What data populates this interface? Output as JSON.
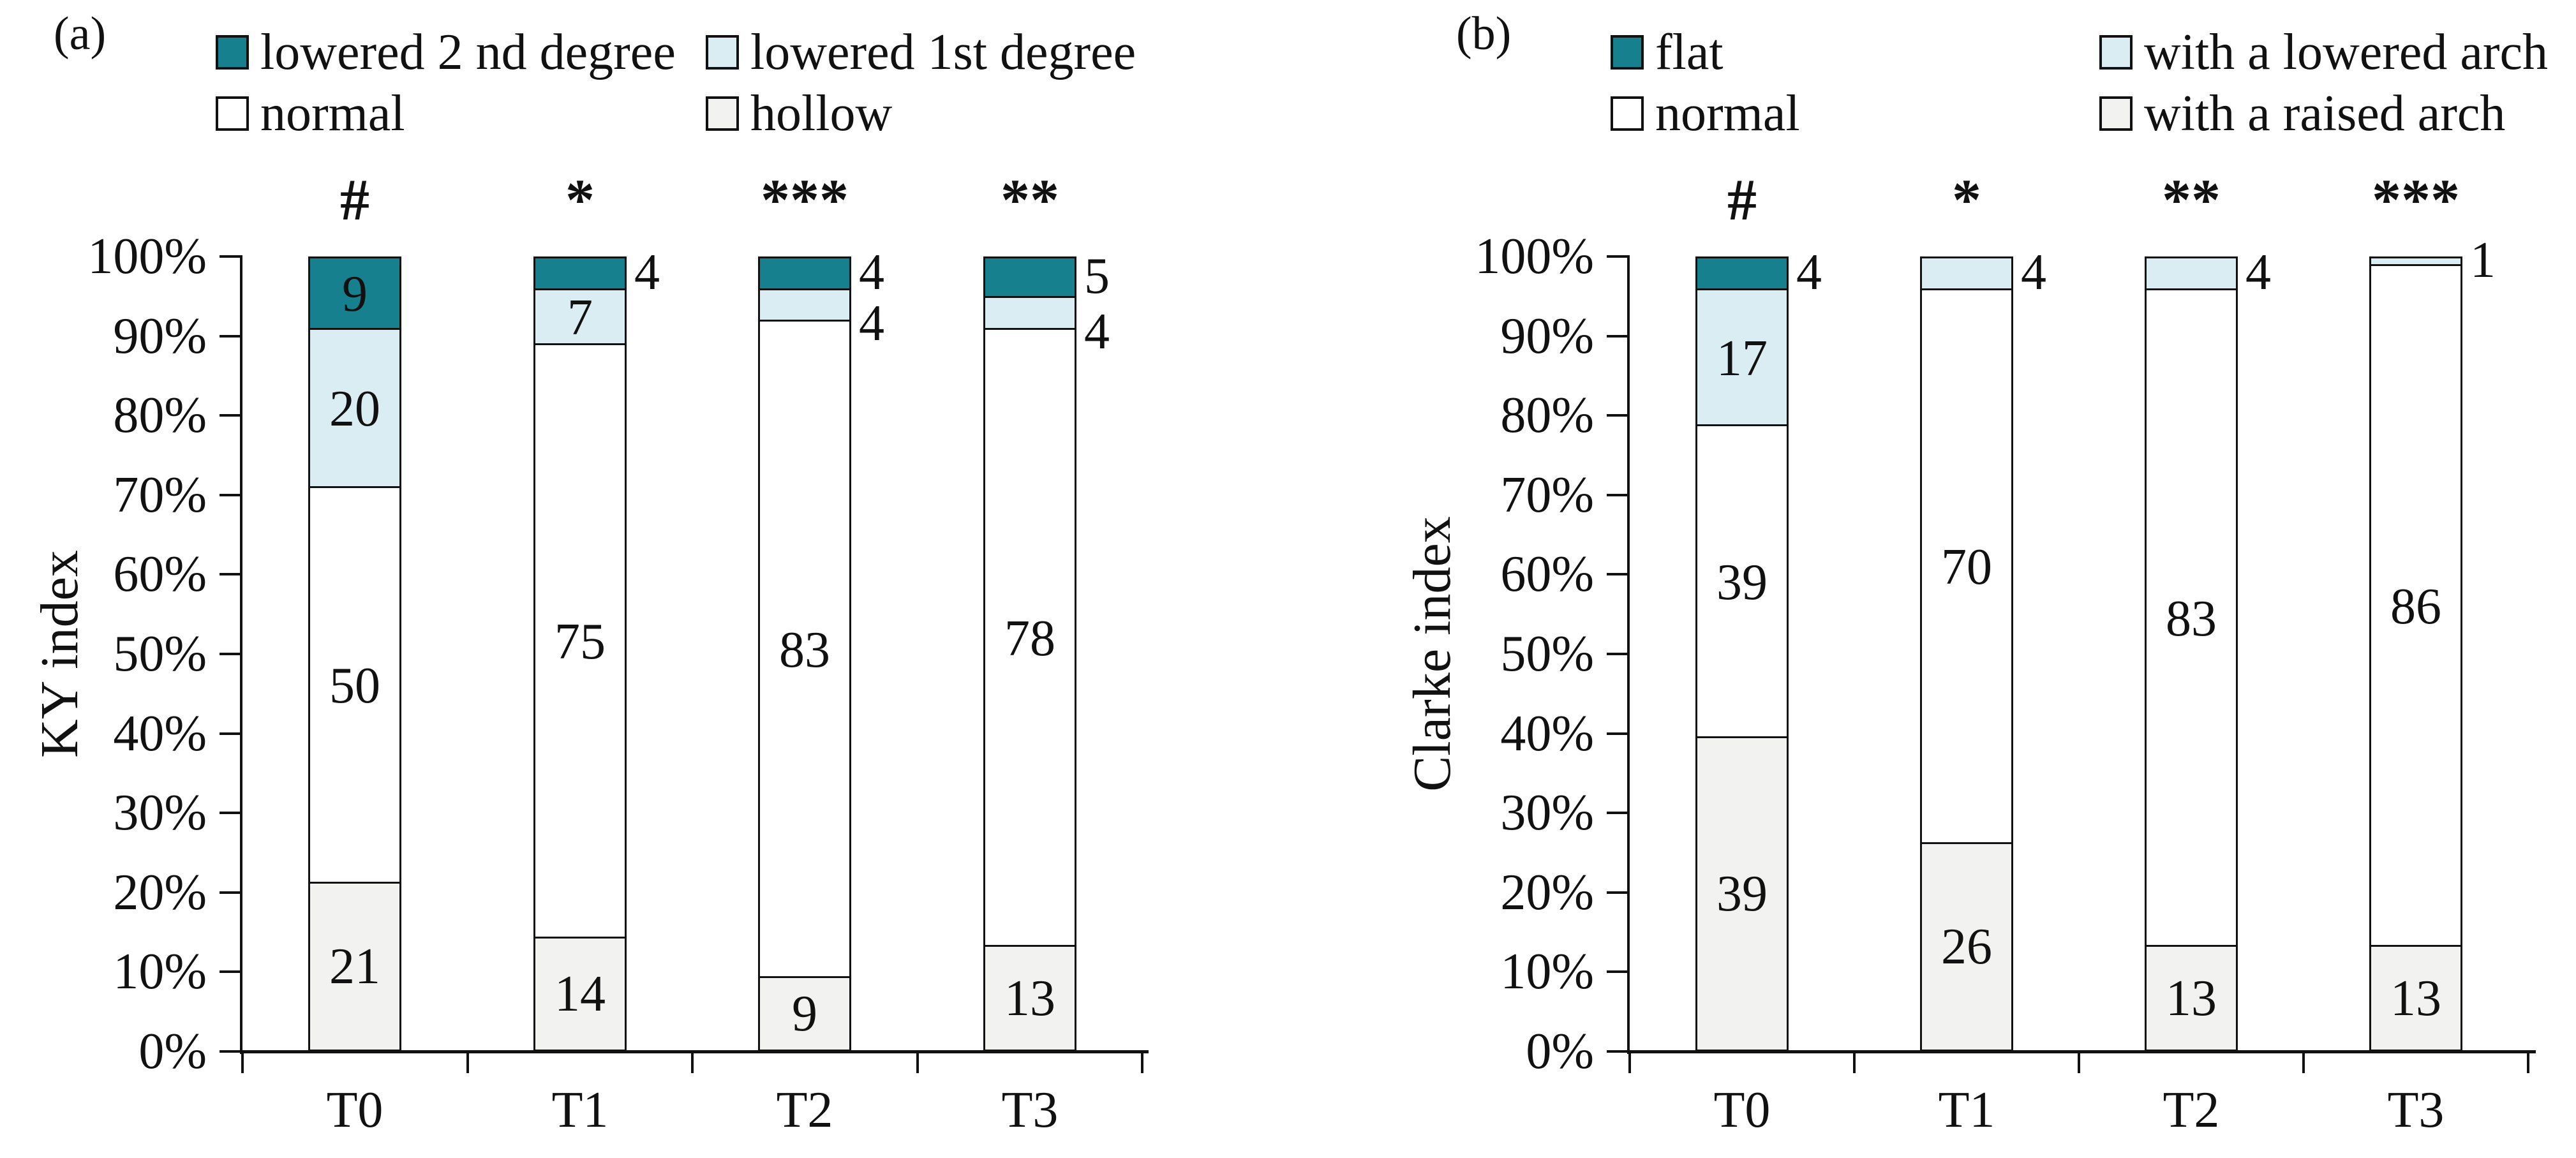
{
  "chart_data": [
    {
      "type": "bar",
      "stacked": true,
      "percent_scale": true,
      "panel_label": "(a)",
      "ylabel": "KY index",
      "xlabel": "",
      "categories": [
        "T0",
        "T1",
        "T2",
        "T3"
      ],
      "significance_markers": [
        "#",
        "*",
        "***",
        "**"
      ],
      "series_order": "bottom-to-top",
      "series": [
        {
          "name": "hollow",
          "color": "#F2F2F1",
          "values": [
            21,
            14,
            9,
            13
          ]
        },
        {
          "name": "normal",
          "color": "#FFFFFF",
          "values": [
            50,
            75,
            83,
            78
          ]
        },
        {
          "name": "lowered 1st degree",
          "color": "#D9EDF3",
          "values": [
            20,
            7,
            4,
            4
          ]
        },
        {
          "name": "lowered 2 nd degree",
          "color": "#16808F",
          "values": [
            9,
            4,
            4,
            5
          ]
        }
      ],
      "legend_order": [
        "lowered 2 nd degree",
        "lowered 1st degree",
        "normal",
        "hollow"
      ],
      "legend_position": "top",
      "y_ticks": [
        "100%",
        "90%",
        "80%",
        "70%",
        "60%",
        "50%",
        "40%",
        "30%",
        "20%",
        "10%",
        "0%"
      ],
      "ylim": [
        0,
        100
      ],
      "grid": false
    },
    {
      "type": "bar",
      "stacked": true,
      "percent_scale": true,
      "panel_label": "(b)",
      "ylabel": "Clarke index",
      "xlabel": "",
      "categories": [
        "T0",
        "T1",
        "T2",
        "T3"
      ],
      "significance_markers": [
        "#",
        "*",
        "**",
        "***"
      ],
      "series_order": "bottom-to-top",
      "series": [
        {
          "name": "with a raised arch",
          "color": "#F2F2F1",
          "values": [
            39,
            26,
            13,
            13
          ]
        },
        {
          "name": "normal",
          "color": "#FFFFFF",
          "values": [
            39,
            70,
            83,
            86
          ]
        },
        {
          "name": "with a lowered arch",
          "color": "#D9EDF3",
          "values": [
            17,
            4,
            4,
            1
          ]
        },
        {
          "name": "flat",
          "color": "#16808F",
          "values": [
            4,
            0,
            0,
            0
          ]
        }
      ],
      "legend_order": [
        "flat",
        "with a lowered arch",
        "normal",
        "with a raised arch"
      ],
      "legend_position": "top",
      "y_ticks": [
        "100%",
        "90%",
        "80%",
        "70%",
        "60%",
        "50%",
        "40%",
        "30%",
        "20%",
        "10%",
        "0%"
      ],
      "ylim": [
        0,
        100
      ],
      "grid": false
    }
  ],
  "colors": {
    "dark_teal": "#16808F",
    "pale_blue": "#D9EDF3",
    "white": "#FFFFFF",
    "pale_gray": "#F2F2F1",
    "ink": "#111111"
  }
}
